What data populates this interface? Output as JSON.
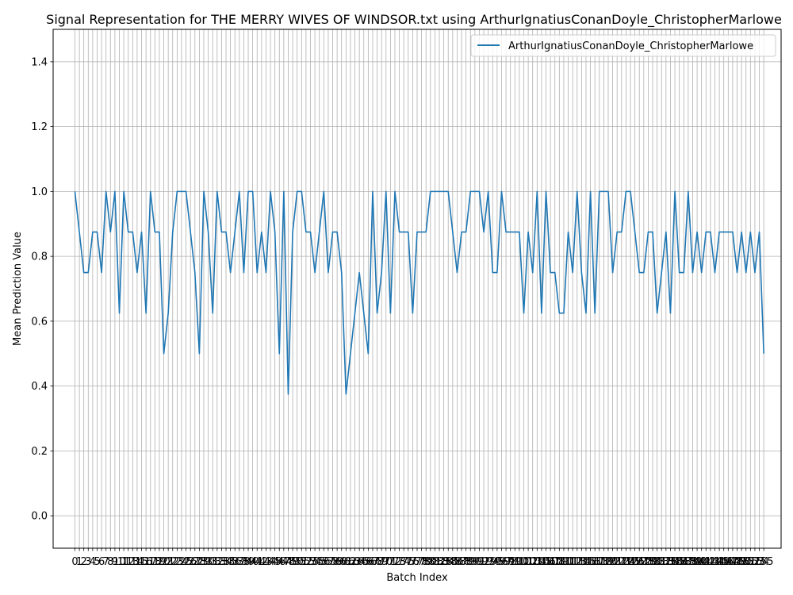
{
  "chart_data": {
    "type": "line",
    "title": "Signal Representation for THE MERRY WIVES OF WINDSOR.txt using ArthurIgnatiusConanDoyle_ChristopherMarlowe",
    "xlabel": "Batch Index",
    "ylabel": "Mean Prediction Value",
    "xlim": [
      -4.9,
      158.9
    ],
    "ylim": [
      -0.1,
      1.5
    ],
    "y_ticks": [
      0.0,
      0.2,
      0.4,
      0.6,
      0.8,
      1.0,
      1.2,
      1.4
    ],
    "grid": true,
    "legend_position": "upper right",
    "line_color": "#1f77b4",
    "series": [
      {
        "name": "ArthurIgnatiusConanDoyle_ChristopherMarlowe",
        "x_start": 0,
        "values": [
          1.0,
          0.875,
          0.75,
          0.75,
          0.875,
          0.875,
          0.75,
          1.0,
          0.875,
          1.0,
          0.625,
          1.0,
          0.875,
          0.875,
          0.75,
          0.875,
          0.625,
          1.0,
          0.875,
          0.875,
          0.5,
          0.625,
          0.875,
          1.0,
          1.0,
          1.0,
          0.875,
          0.75,
          0.5,
          1.0,
          0.875,
          0.625,
          1.0,
          0.875,
          0.875,
          0.75,
          0.875,
          1.0,
          0.75,
          1.0,
          1.0,
          0.75,
          0.875,
          0.75,
          1.0,
          0.875,
          0.5,
          1.0,
          0.375,
          0.875,
          1.0,
          1.0,
          0.875,
          0.875,
          0.75,
          0.875,
          1.0,
          0.75,
          0.875,
          0.875,
          0.75,
          0.375,
          0.5,
          0.625,
          0.75,
          0.625,
          0.5,
          1.0,
          0.625,
          0.75,
          1.0,
          0.625,
          1.0,
          0.875,
          0.875,
          0.875,
          0.625,
          0.875,
          0.875,
          0.875,
          1.0,
          1.0,
          1.0,
          1.0,
          1.0,
          0.875,
          0.75,
          0.875,
          0.875,
          1.0,
          1.0,
          1.0,
          0.875,
          1.0,
          0.75,
          0.75,
          1.0,
          0.875,
          0.875,
          0.875,
          0.875,
          0.625,
          0.875,
          0.75,
          1.0,
          0.625,
          1.0,
          0.75,
          0.75,
          0.625,
          0.625,
          0.875,
          0.75,
          1.0,
          0.75,
          0.625,
          1.0,
          0.625,
          1.0,
          1.0,
          1.0,
          0.75,
          0.875,
          0.875,
          1.0,
          1.0,
          0.875,
          0.75,
          0.75,
          0.875,
          0.875,
          0.625,
          0.75,
          0.875,
          0.625,
          1.0,
          0.75,
          0.75,
          1.0,
          0.75,
          0.875,
          0.75,
          0.875,
          0.875,
          0.75,
          0.875,
          0.875,
          0.875,
          0.875,
          0.75,
          0.875,
          0.75,
          0.875,
          0.75,
          0.875,
          0.5
        ]
      }
    ]
  }
}
